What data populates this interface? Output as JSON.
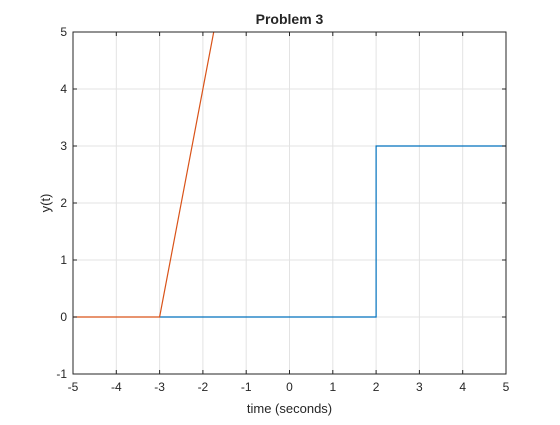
{
  "chart_data": {
    "type": "line",
    "title": "Problem 3",
    "xlabel": "time (seconds)",
    "ylabel": "y(t)",
    "xlim": [
      -5,
      5
    ],
    "ylim": [
      -1,
      5
    ],
    "xticks": [
      -5,
      -4,
      -3,
      -2,
      -1,
      0,
      1,
      2,
      3,
      4,
      5
    ],
    "yticks": [
      -1,
      0,
      1,
      2,
      3,
      4,
      5
    ],
    "grid": true,
    "legend": "none",
    "series": [
      {
        "color": "#0072BD",
        "x": [
          -3,
          2,
          2,
          5
        ],
        "y": [
          0,
          0,
          3,
          3
        ]
      },
      {
        "color": "#D95319",
        "x": [
          -5,
          -3,
          -1.75
        ],
        "y": [
          0,
          0,
          5
        ]
      }
    ]
  }
}
